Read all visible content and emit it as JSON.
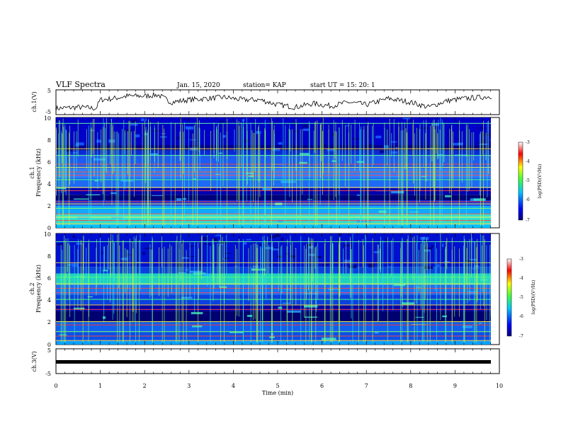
{
  "header": {
    "title": "VLF Spectra",
    "date": "Jan. 15, 2020",
    "station": "station= KAP",
    "start": "start UT =  15: 20: 1"
  },
  "chart_data": [
    {
      "type": "line",
      "ylabel": "ch.1(V)",
      "ylim": [
        -5,
        5
      ],
      "yticks": [
        5,
        -5
      ],
      "xlim": [
        0,
        10
      ],
      "x": [
        0,
        0.5,
        0.9,
        1.0,
        1.3,
        1.6,
        2.0,
        2.3,
        2.6,
        3.0,
        3.4,
        3.8,
        4.2,
        4.6,
        5.0,
        5.4,
        5.8,
        6.2,
        6.6,
        7.0,
        7.5,
        8.0,
        8.4,
        8.8,
        9.2,
        9.6,
        9.85
      ],
      "values": [
        -2.5,
        -2,
        -2.5,
        1,
        1.5,
        2.5,
        2.5,
        3,
        0,
        1,
        1.5,
        2,
        1,
        1,
        -1,
        -2,
        -0.5,
        -1.5,
        0,
        -1,
        1.5,
        0,
        -2,
        0.5,
        1.5,
        2,
        2.5
      ],
      "color": "#000000"
    },
    {
      "type": "heatmap",
      "ylabel": "ch.1",
      "ylabel2": "Frequency (kHz)",
      "yticks": [
        "10",
        "8",
        "6",
        "4",
        "2",
        "0"
      ],
      "ylim": [
        0,
        10
      ],
      "xlim": [
        0,
        10
      ],
      "colorbar": {
        "label": "log(PSD)(V²/Hz)",
        "ticks": [
          "-3",
          "-4",
          "-5",
          "-6",
          "-7"
        ],
        "range": [
          -7,
          -3
        ]
      }
    },
    {
      "type": "heatmap",
      "ylabel": "ch.2",
      "ylabel2": "Frequency (kHz)",
      "yticks": [
        "10",
        "8",
        "6",
        "4",
        "2",
        "0"
      ],
      "ylim": [
        0,
        10
      ],
      "xlim": [
        0,
        10
      ],
      "colorbar": {
        "label": "log(PSD)(V²/Hz)",
        "ticks": [
          "-3",
          "-4",
          "-5",
          "-6",
          "-7"
        ],
        "range": [
          -7,
          -3
        ]
      }
    },
    {
      "type": "line",
      "ylabel": "ch.3(V)",
      "ylim": [
        -5,
        5
      ],
      "yticks": [
        5,
        -5
      ],
      "xlim": [
        0,
        10
      ],
      "x": [
        0,
        9.85
      ],
      "values": [
        0,
        0
      ],
      "color": "#000000"
    }
  ],
  "xaxis": {
    "label": "Time (min)",
    "ticks": [
      "0",
      "1",
      "2",
      "3",
      "4",
      "5",
      "6",
      "7",
      "8",
      "9",
      "10"
    ]
  },
  "colors": {
    "deep_blue": "#00007f",
    "blue": "#0000ff",
    "cyan": "#00c8ff",
    "green": "#3fff3f",
    "yellow": "#ffff00",
    "red": "#ff0000",
    "dark_red": "#7f0000"
  }
}
